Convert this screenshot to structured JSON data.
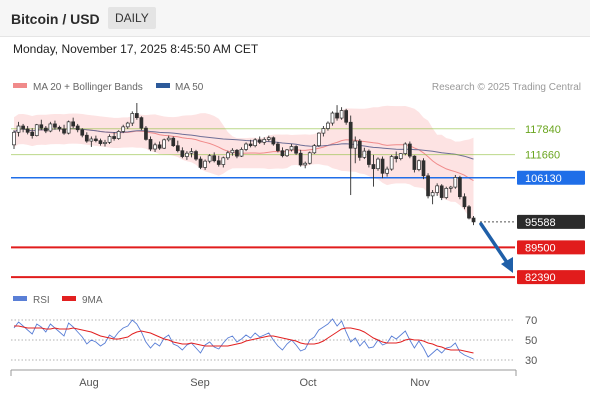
{
  "header": {
    "title": "Bitcoin / USD",
    "period": "DAILY"
  },
  "datetime": "Monday, November 17, 2025 8:45:50 AM CET",
  "legend": {
    "ma20_bb": "MA 20 + Bollinger Bands",
    "ma50": "MA 50",
    "credit": "Research © 2025 Trading Central",
    "rsi": "RSI",
    "rsi_ma": "9MA"
  },
  "colors": {
    "candle": "#2e2e2e",
    "bb_fill": "#fde3e3",
    "ma20": "#f08a8a",
    "ma50": "#6e6e96",
    "resistance": "#8fbf3c",
    "pivot": "#1f6ee8",
    "support": "#e11c1c",
    "last_price": "#2b2b2b",
    "arrow": "#1f5fa8",
    "rsi": "#5a7fd6",
    "rsi_ma": "#e22020"
  },
  "chart_data": [
    {
      "type": "candlestick",
      "x_ticks": [
        "Aug",
        "Sep",
        "Oct",
        "Nov"
      ],
      "ylim": [
        80500,
        124000
      ],
      "levels": [
        {
          "value": 117840,
          "label": "117840",
          "kind": "resistance"
        },
        {
          "value": 111660,
          "label": "111660",
          "kind": "resistance"
        },
        {
          "value": 106130,
          "label": "106130",
          "kind": "pivot"
        },
        {
          "value": 95588,
          "label": "95588",
          "kind": "last"
        },
        {
          "value": 89500,
          "label": "89500",
          "kind": "support"
        },
        {
          "value": 82390,
          "label": "82390",
          "kind": "support"
        }
      ],
      "ohlc": [
        [
          114000,
          117500,
          113000,
          117000
        ],
        [
          117000,
          119500,
          116000,
          118500
        ],
        [
          118500,
          119000,
          117000,
          117800
        ],
        [
          117800,
          118500,
          116500,
          117000
        ],
        [
          117000,
          118000,
          115500,
          116200
        ],
        [
          116200,
          119000,
          116000,
          118800
        ],
        [
          118800,
          120000,
          117500,
          118000
        ],
        [
          118000,
          118500,
          116800,
          117300
        ],
        [
          117300,
          119500,
          117000,
          119000
        ],
        [
          119000,
          119800,
          117600,
          118200
        ],
        [
          118200,
          118600,
          117200,
          117800
        ],
        [
          117800,
          118800,
          116400,
          116800
        ],
        [
          116800,
          119800,
          116500,
          119500
        ],
        [
          119500,
          120500,
          118000,
          118500
        ],
        [
          118500,
          119000,
          117000,
          117600
        ],
        [
          117600,
          118000,
          115800,
          116300
        ],
        [
          116300,
          117000,
          114500,
          114900
        ],
        [
          114900,
          116000,
          113500,
          115400
        ],
        [
          115400,
          116200,
          114600,
          115000
        ],
        [
          115000,
          115500,
          113800,
          114300
        ],
        [
          114300,
          115200,
          113600,
          114600
        ],
        [
          114600,
          116500,
          114200,
          116000
        ],
        [
          116000,
          117000,
          115000,
          115500
        ],
        [
          115500,
          117500,
          115200,
          117200
        ],
        [
          117200,
          118800,
          116800,
          118300
        ],
        [
          118300,
          119500,
          117800,
          119200
        ],
        [
          119200,
          122000,
          118500,
          121500
        ],
        [
          121500,
          124000,
          120000,
          120500
        ],
        [
          120500,
          120800,
          117500,
          118000
        ],
        [
          118000,
          118500,
          115000,
          115300
        ],
        [
          115300,
          116000,
          112500,
          113000
        ],
        [
          113000,
          114500,
          112300,
          114000
        ],
        [
          114000,
          114800,
          112800,
          113200
        ],
        [
          113200,
          115500,
          113000,
          115200
        ],
        [
          115200,
          116200,
          114800,
          115600
        ],
        [
          115600,
          116000,
          113500,
          113800
        ],
        [
          113800,
          115000,
          112200,
          112600
        ],
        [
          112600,
          113400,
          110800,
          111200
        ],
        [
          111200,
          112500,
          110400,
          112000
        ],
        [
          112000,
          113200,
          111000,
          112400
        ],
        [
          112400,
          112800,
          110200,
          110600
        ],
        [
          110600,
          111200,
          108200,
          108600
        ],
        [
          108600,
          110500,
          108000,
          110100
        ],
        [
          110100,
          111800,
          109600,
          111400
        ],
        [
          111400,
          112200,
          109800,
          110200
        ],
        [
          110200,
          111400,
          108800,
          109300
        ],
        [
          109300,
          111200,
          108600,
          110900
        ],
        [
          110900,
          112600,
          110400,
          112100
        ],
        [
          112100,
          113200,
          111400,
          112700
        ],
        [
          112700,
          113000,
          110800,
          111300
        ],
        [
          111300,
          113400,
          111100,
          112900
        ],
        [
          112900,
          114600,
          112500,
          114200
        ],
        [
          114200,
          115200,
          113400,
          113800
        ],
        [
          113800,
          115600,
          113400,
          115200
        ],
        [
          115200,
          116000,
          114200,
          114600
        ],
        [
          114600,
          115800,
          114000,
          115300
        ],
        [
          115300,
          116200,
          114800,
          115700
        ],
        [
          115700,
          116000,
          113800,
          114200
        ],
        [
          114200,
          114700,
          112200,
          112600
        ],
        [
          112600,
          113400,
          111000,
          111400
        ],
        [
          111400,
          113000,
          111100,
          112800
        ],
        [
          112800,
          114200,
          112400,
          113600
        ],
        [
          113600,
          113900,
          111600,
          112000
        ],
        [
          112000,
          112800,
          108800,
          109200
        ],
        [
          109200,
          110000,
          108400,
          109600
        ],
        [
          109600,
          112400,
          109300,
          112100
        ],
        [
          112100,
          114200,
          111800,
          113800
        ],
        [
          113800,
          117000,
          113500,
          116800
        ],
        [
          116800,
          118500,
          116000,
          117900
        ],
        [
          117900,
          119600,
          117400,
          119200
        ],
        [
          119200,
          122000,
          118600,
          121600
        ],
        [
          121600,
          123500,
          119800,
          120400
        ],
        [
          120400,
          123000,
          120000,
          122200
        ],
        [
          122200,
          122600,
          118800,
          119400
        ],
        [
          119400,
          121000,
          102000,
          113200
        ],
        [
          113200,
          116000,
          109600,
          114900
        ],
        [
          114900,
          115400,
          110200,
          111000
        ],
        [
          111000,
          113300,
          110600,
          112500
        ],
        [
          112500,
          112900,
          108600,
          109300
        ],
        [
          109300,
          111600,
          104000,
          108300
        ],
        [
          108300,
          111000,
          107800,
          110600
        ],
        [
          110600,
          111200,
          106000,
          107200
        ],
        [
          107200,
          108800,
          106400,
          108200
        ],
        [
          108200,
          111600,
          107800,
          111200
        ],
        [
          111200,
          112400,
          109800,
          110700
        ],
        [
          110700,
          112000,
          110300,
          111900
        ],
        [
          111900,
          114600,
          111500,
          114200
        ],
        [
          114200,
          114800,
          110800,
          111300
        ],
        [
          111300,
          111500,
          107400,
          108100
        ],
        [
          108100,
          110500,
          107700,
          110200
        ],
        [
          110200,
          110800,
          105800,
          106600
        ],
        [
          106600,
          107200,
          101200,
          101800
        ],
        [
          101800,
          103200,
          99800,
          102600
        ],
        [
          102600,
          104800,
          101800,
          104200
        ],
        [
          104200,
          104600,
          100800,
          101400
        ],
        [
          101400,
          104000,
          101000,
          103600
        ],
        [
          103600,
          104200,
          102600,
          103900
        ],
        [
          103900,
          106800,
          103500,
          106200
        ],
        [
          106200,
          106600,
          101000,
          101600
        ],
        [
          101600,
          102400,
          98600,
          99200
        ],
        [
          99200,
          99600,
          96200,
          96500
        ],
        [
          96500,
          97000,
          94800,
          95588
        ]
      ]
    },
    {
      "type": "line",
      "name": "RSI",
      "ylim": [
        24,
        78
      ],
      "y_ticks": [
        70,
        50,
        30
      ],
      "series": [
        {
          "name": "RSI",
          "values": [
            62,
            68,
            64,
            60,
            56,
            66,
            63,
            58,
            66,
            62,
            58,
            54,
            67,
            63,
            58,
            53,
            46,
            50,
            48,
            44,
            47,
            55,
            52,
            58,
            62,
            64,
            70,
            66,
            58,
            48,
            42,
            47,
            44,
            52,
            55,
            46,
            44,
            40,
            45,
            47,
            42,
            37,
            45,
            48,
            43,
            41,
            47,
            52,
            54,
            48,
            51,
            55,
            52,
            57,
            53,
            55,
            57,
            50,
            44,
            40,
            46,
            50,
            45,
            39,
            41,
            50,
            53,
            60,
            63,
            66,
            71,
            64,
            69,
            58,
            48,
            52,
            44,
            49,
            42,
            43,
            50,
            45,
            47,
            54,
            51,
            55,
            59,
            50,
            42,
            49,
            42,
            33,
            37,
            41,
            37,
            42,
            43,
            47,
            38,
            35,
            33,
            31
          ]
        },
        {
          "name": "9MA",
          "values": [
            64,
            64,
            63,
            62,
            62,
            62,
            62,
            61,
            61,
            62,
            61,
            61,
            61,
            62,
            61,
            60,
            59,
            58,
            56,
            54,
            53,
            52,
            51,
            51,
            52,
            53,
            56,
            58,
            59,
            58,
            57,
            55,
            53,
            51,
            50,
            48,
            47,
            46,
            46,
            47,
            46,
            45,
            44,
            44,
            44,
            44,
            44,
            44,
            45,
            46,
            47,
            49,
            50,
            51,
            52,
            53,
            54,
            54,
            53,
            52,
            51,
            50,
            49,
            47,
            46,
            46,
            46,
            47,
            49,
            52,
            55,
            58,
            61,
            62,
            62,
            61,
            60,
            58,
            55,
            52,
            50,
            48,
            47,
            47,
            47,
            48,
            50,
            51,
            50,
            50,
            49,
            47,
            46,
            44,
            43,
            41,
            40,
            40,
            40,
            39,
            38,
            37
          ]
        }
      ]
    }
  ]
}
